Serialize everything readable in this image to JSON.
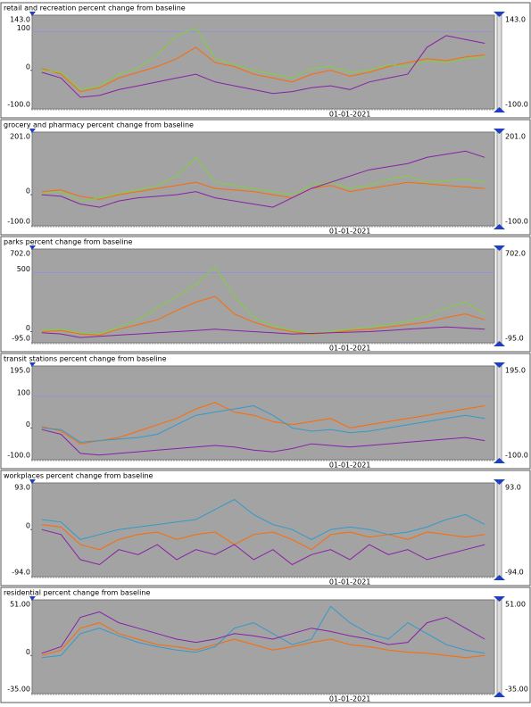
{
  "chart_data": [
    {
      "type": "line",
      "title": "retail and recreation percent change from baseline",
      "grid": true,
      "ylim": [
        -100,
        143
      ],
      "yticks": [
        {
          "value": -100,
          "label": "-100.0"
        },
        0,
        100,
        {
          "value": 143,
          "label": "143.0"
        }
      ],
      "categories": [
        null,
        null,
        null,
        null,
        null,
        null,
        null,
        null,
        null,
        null,
        null,
        null,
        null,
        null,
        null,
        null,
        "01-01-2021",
        null,
        null,
        null,
        null,
        null,
        null,
        null
      ],
      "series": [
        {
          "color": "#ff6a00",
          "values": [
            5,
            -10,
            -55,
            -45,
            -20,
            -5,
            10,
            30,
            60,
            20,
            10,
            -10,
            -20,
            -30,
            -10,
            0,
            -15,
            -5,
            10,
            20,
            30,
            25,
            35,
            40
          ]
        },
        {
          "color": "#7fd13b",
          "values": [
            0,
            -5,
            -50,
            -40,
            -10,
            5,
            40,
            90,
            110,
            30,
            15,
            0,
            -10,
            -20,
            5,
            10,
            -5,
            0,
            15,
            10,
            25,
            20,
            30,
            35
          ]
        },
        {
          "color": "#8a1fa8",
          "values": [
            -5,
            -20,
            -70,
            -65,
            -50,
            -40,
            -30,
            -20,
            -10,
            -30,
            -40,
            -50,
            -60,
            -55,
            -45,
            -40,
            -50,
            -30,
            -20,
            -10,
            60,
            90,
            80,
            70
          ]
        }
      ]
    },
    {
      "type": "line",
      "title": "grocery and pharmacy percent change from baseline",
      "grid": true,
      "ylim": [
        -100,
        201
      ],
      "yticks": [
        {
          "value": -100,
          "label": "-100.0"
        },
        0,
        {
          "value": 201,
          "label": "201.0"
        }
      ],
      "categories": [
        null,
        null,
        null,
        null,
        null,
        null,
        null,
        null,
        null,
        null,
        null,
        null,
        null,
        null,
        null,
        null,
        "01-01-2021",
        null,
        null,
        null,
        null,
        null,
        null,
        null
      ],
      "series": [
        {
          "color": "#ff6a00",
          "values": [
            10,
            15,
            -5,
            -15,
            0,
            10,
            20,
            30,
            40,
            20,
            15,
            10,
            0,
            -10,
            20,
            30,
            10,
            20,
            30,
            40,
            35,
            30,
            25,
            20
          ]
        },
        {
          "color": "#7fd13b",
          "values": [
            5,
            10,
            -20,
            -10,
            5,
            15,
            30,
            60,
            120,
            40,
            30,
            20,
            10,
            0,
            30,
            40,
            20,
            30,
            50,
            60,
            40,
            45,
            50,
            40
          ]
        },
        {
          "color": "#8a1fa8",
          "values": [
            0,
            -5,
            -30,
            -40,
            -20,
            -10,
            -5,
            0,
            10,
            -10,
            -20,
            -30,
            -40,
            -10,
            20,
            40,
            60,
            80,
            90,
            100,
            120,
            130,
            140,
            120
          ]
        }
      ]
    },
    {
      "type": "line",
      "title": "parks percent change from baseline",
      "grid": true,
      "ylim": [
        -95,
        702
      ],
      "yticks": [
        {
          "value": -95,
          "label": "-95.0"
        },
        0,
        500,
        {
          "value": 702,
          "label": "702.0"
        }
      ],
      "categories": [
        null,
        null,
        null,
        null,
        null,
        null,
        null,
        null,
        null,
        null,
        null,
        null,
        null,
        null,
        null,
        null,
        "01-01-2021",
        null,
        null,
        null,
        null,
        null,
        null,
        null
      ],
      "series": [
        {
          "color": "#ff6a00",
          "values": [
            0,
            10,
            -20,
            -30,
            20,
            60,
            100,
            180,
            250,
            300,
            150,
            80,
            30,
            0,
            -20,
            -10,
            10,
            20,
            40,
            60,
            80,
            120,
            150,
            100
          ]
        },
        {
          "color": "#7fd13b",
          "values": [
            10,
            20,
            -10,
            -20,
            40,
            100,
            200,
            300,
            400,
            550,
            300,
            120,
            50,
            10,
            -10,
            0,
            20,
            40,
            60,
            90,
            130,
            200,
            250,
            150
          ]
        },
        {
          "color": "#8a1fa8",
          "values": [
            -10,
            -20,
            -50,
            -40,
            -30,
            -20,
            -10,
            0,
            10,
            20,
            10,
            0,
            -10,
            -20,
            -15,
            -10,
            -5,
            0,
            10,
            20,
            30,
            40,
            30,
            20
          ]
        }
      ]
    },
    {
      "type": "line",
      "title": "transit stations percent change from baseline",
      "grid": true,
      "ylim": [
        -100,
        195
      ],
      "yticks": [
        {
          "value": -100,
          "label": "-100.0"
        },
        0,
        100,
        {
          "value": 195,
          "label": "195.0"
        }
      ],
      "categories": [
        null,
        null,
        null,
        null,
        null,
        null,
        null,
        null,
        null,
        null,
        null,
        null,
        null,
        null,
        null,
        null,
        "01-01-2021",
        null,
        null,
        null,
        null,
        null,
        null,
        null
      ],
      "series": [
        {
          "color": "#ff6a00",
          "values": [
            5,
            -10,
            -50,
            -40,
            -30,
            -10,
            10,
            30,
            60,
            80,
            50,
            40,
            20,
            10,
            20,
            30,
            0,
            10,
            20,
            30,
            40,
            50,
            60,
            70
          ]
        },
        {
          "color": "#3399cc",
          "values": [
            0,
            -5,
            -45,
            -40,
            -35,
            -30,
            -20,
            10,
            40,
            50,
            60,
            70,
            40,
            0,
            -10,
            -5,
            -15,
            -10,
            0,
            10,
            20,
            30,
            40,
            30
          ]
        },
        {
          "color": "#8a1fa8",
          "values": [
            -5,
            -20,
            -80,
            -85,
            -80,
            -75,
            -70,
            -65,
            -60,
            -55,
            -60,
            -70,
            -75,
            -65,
            -50,
            -55,
            -60,
            -55,
            -50,
            -45,
            -40,
            -35,
            -30,
            -40
          ]
        }
      ]
    },
    {
      "type": "line",
      "title": "workplaces percent change from baseline",
      "grid": true,
      "ylim": [
        -94,
        93
      ],
      "yticks": [
        {
          "value": -94,
          "label": "-94.0"
        },
        0,
        {
          "value": 93,
          "label": "93.0"
        }
      ],
      "categories": [
        null,
        null,
        null,
        null,
        null,
        null,
        null,
        null,
        null,
        null,
        null,
        null,
        null,
        null,
        null,
        null,
        "01-01-2021",
        null,
        null,
        null,
        null,
        null,
        null,
        null
      ],
      "series": [
        {
          "color": "#ff6a00",
          "values": [
            10,
            5,
            -30,
            -40,
            -20,
            -10,
            -5,
            -20,
            -10,
            -5,
            -30,
            -10,
            -5,
            -20,
            -40,
            -10,
            -5,
            -15,
            -10,
            -20,
            -5,
            -10,
            -15,
            -10
          ]
        },
        {
          "color": "#3399cc",
          "values": [
            20,
            15,
            -20,
            -10,
            0,
            5,
            10,
            15,
            20,
            40,
            60,
            30,
            10,
            0,
            -20,
            0,
            5,
            0,
            -10,
            -5,
            5,
            20,
            30,
            10
          ]
        },
        {
          "color": "#8a1fa8",
          "values": [
            0,
            -10,
            -60,
            -70,
            -40,
            -50,
            -30,
            -60,
            -40,
            -50,
            -30,
            -60,
            -40,
            -70,
            -50,
            -40,
            -60,
            -30,
            -50,
            -40,
            -60,
            -50,
            -40,
            -30
          ]
        }
      ]
    },
    {
      "type": "line",
      "title": "residential percent change from baseline",
      "grid": true,
      "ylim": [
        -35,
        51
      ],
      "yticks": [
        {
          "value": -35,
          "label": "-35.00"
        },
        0,
        {
          "value": 51,
          "label": "51.00"
        }
      ],
      "categories": [
        null,
        null,
        null,
        null,
        null,
        null,
        null,
        null,
        null,
        null,
        null,
        null,
        null,
        null,
        null,
        null,
        "01-01-2021",
        null,
        null,
        null,
        null,
        null,
        null,
        null
      ],
      "series": [
        {
          "color": "#ff6a00",
          "values": [
            0,
            5,
            25,
            30,
            20,
            15,
            10,
            8,
            5,
            10,
            15,
            10,
            5,
            8,
            12,
            15,
            10,
            8,
            5,
            3,
            2,
            0,
            -2,
            0
          ]
        },
        {
          "color": "#3399cc",
          "values": [
            -2,
            0,
            20,
            25,
            18,
            12,
            8,
            5,
            3,
            8,
            25,
            30,
            20,
            10,
            15,
            45,
            30,
            20,
            15,
            30,
            20,
            10,
            5,
            2
          ]
        },
        {
          "color": "#8a1fa8",
          "values": [
            2,
            8,
            35,
            40,
            30,
            25,
            20,
            15,
            12,
            15,
            20,
            18,
            15,
            20,
            25,
            22,
            18,
            15,
            10,
            12,
            30,
            35,
            25,
            15
          ]
        }
      ]
    }
  ]
}
